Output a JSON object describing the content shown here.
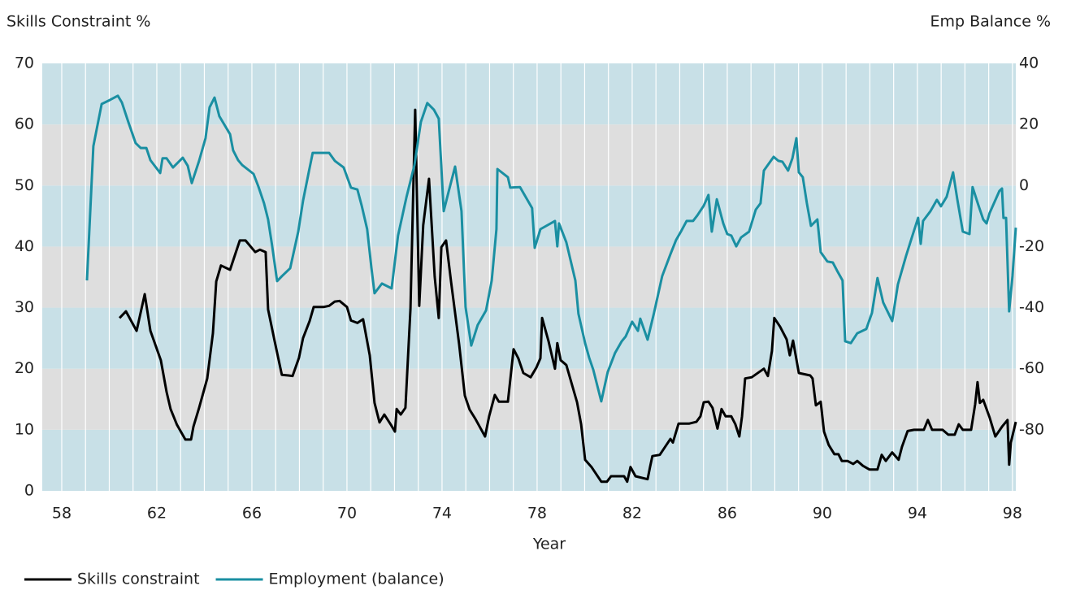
{
  "chart_data": {
    "type": "line",
    "y_label": "Skills Constraint %",
    "y2_label": "Emp Balance %",
    "x_label": "Year",
    "xlim": [
      57.18,
      98.14
    ],
    "xticks": [
      58,
      62,
      66,
      70,
      74,
      78,
      82,
      86,
      90,
      94,
      98
    ],
    "xgrid": [
      58,
      59,
      60,
      61,
      62,
      63,
      64,
      65,
      66,
      67,
      68,
      69,
      70,
      71,
      72,
      73,
      74,
      75,
      76,
      77,
      78,
      79,
      80,
      81,
      82,
      83,
      84,
      85,
      86,
      87,
      88,
      89,
      90,
      91,
      92,
      93,
      94,
      95,
      96,
      97,
      98
    ],
    "ylim": [
      0,
      70
    ],
    "yticks": [
      0,
      10,
      20,
      30,
      40,
      50,
      60,
      70
    ],
    "y2lim": [
      -100,
      40
    ],
    "y2ticks": [
      -80,
      -60,
      -40,
      -20,
      0,
      20,
      40
    ],
    "band_colors": [
      "#c8e0e7",
      "#dedede"
    ],
    "series": [
      {
        "name": "Skills constraint",
        "color": "#000000",
        "axis": "y",
        "x": [
          60.43,
          60.7,
          61.15,
          61.49,
          61.73,
          62.17,
          62.41,
          62.58,
          62.85,
          63.2,
          63.44,
          63.54,
          63.78,
          64.12,
          64.36,
          64.5,
          64.7,
          65.08,
          65.32,
          65.49,
          65.73,
          66.14,
          66.34,
          66.58,
          66.68,
          66.96,
          67.26,
          67.54,
          67.71,
          67.98,
          68.15,
          68.43,
          68.6,
          69.01,
          69.25,
          69.49,
          69.69,
          70.0,
          70.17,
          70.44,
          70.68,
          70.96,
          71.16,
          71.37,
          71.57,
          71.85,
          72.02,
          72.09,
          72.26,
          72.46,
          72.67,
          72.87,
          73.04,
          73.21,
          73.45,
          73.69,
          73.86,
          73.97,
          74.17,
          74.38,
          74.72,
          74.96,
          75.16,
          75.4,
          75.81,
          75.98,
          76.22,
          76.39,
          76.77,
          77.01,
          77.21,
          77.42,
          77.73,
          77.97,
          78.14,
          78.21,
          78.48,
          78.75,
          78.85,
          78.99,
          79.23,
          79.68,
          79.85,
          80.02,
          80.29,
          80.7,
          80.94,
          81.11,
          81.66,
          81.79,
          81.93,
          82.14,
          82.65,
          82.75,
          82.85,
          83.16,
          83.61,
          83.71,
          83.95,
          84.39,
          84.7,
          84.87,
          85.01,
          85.21,
          85.38,
          85.59,
          85.76,
          85.93,
          86.17,
          86.34,
          86.51,
          86.62,
          86.75,
          87.03,
          87.54,
          87.71,
          87.88,
          87.98,
          88.22,
          88.5,
          88.63,
          88.77,
          89.01,
          89.49,
          89.59,
          89.73,
          89.93,
          90.07,
          90.27,
          90.51,
          90.68,
          90.82,
          91.06,
          91.3,
          91.47,
          91.71,
          91.98,
          92.32,
          92.5,
          92.67,
          92.94,
          93.21,
          93.35,
          93.59,
          93.86,
          94.27,
          94.44,
          94.62,
          95.06,
          95.3,
          95.57,
          95.74,
          95.91,
          96.26,
          96.43,
          96.53,
          96.63,
          96.77,
          97.04,
          97.28,
          97.56,
          97.79,
          97.86,
          97.93,
          98.14
        ],
        "values": [
          28.3,
          29.4,
          26.2,
          32.2,
          26.2,
          21.4,
          16.2,
          13.4,
          10.8,
          8.4,
          8.4,
          10.5,
          13.6,
          18.4,
          25.8,
          34.3,
          36.9,
          36.2,
          39,
          41,
          41,
          39.1,
          39.5,
          39.1,
          29.7,
          24.5,
          19,
          18.9,
          18.8,
          21.8,
          25,
          27.8,
          30.1,
          30.1,
          30.3,
          31,
          31.1,
          30.1,
          27.9,
          27.5,
          28.1,
          22.2,
          14.4,
          11.2,
          12.5,
          10.8,
          9.7,
          13.4,
          12.5,
          13.6,
          29.8,
          62.4,
          30.3,
          43.5,
          51.1,
          35.1,
          28.3,
          39.9,
          41,
          34.2,
          24,
          15.6,
          13.3,
          11.8,
          8.9,
          12.2,
          15.7,
          14.6,
          14.6,
          23.2,
          21.7,
          19.3,
          18.6,
          20.2,
          21.7,
          28.3,
          24.5,
          20,
          24.2,
          21.4,
          20.6,
          14.5,
          10.9,
          5.1,
          3.9,
          1.5,
          1.5,
          2.4,
          2.4,
          1.5,
          3.9,
          2.4,
          1.9,
          3.9,
          5.7,
          5.9,
          8.5,
          7.9,
          11,
          11,
          11.3,
          12.2,
          14.5,
          14.6,
          13.6,
          10.2,
          13.4,
          12.2,
          12.2,
          10.9,
          8.9,
          12.2,
          18.4,
          18.6,
          20,
          18.8,
          22.9,
          28.3,
          26.9,
          24.8,
          22.2,
          24.6,
          19.3,
          18.9,
          18.4,
          14,
          14.6,
          9.7,
          7.5,
          6,
          6,
          4.9,
          4.9,
          4.4,
          4.9,
          4.1,
          3.5,
          3.5,
          5.9,
          4.9,
          6.3,
          5.1,
          7.2,
          9.8,
          10,
          10,
          11.6,
          10,
          10,
          9.2,
          9.2,
          10.9,
          10,
          10,
          14.2,
          17.8,
          14.4,
          14.9,
          12,
          8.9,
          10.5,
          11.6,
          4.3,
          7.9,
          11.3
        ]
      },
      {
        "name": "Employment (balance)",
        "color": "#1a8fa2",
        "axis": "y2",
        "x": [
          59.06,
          59.33,
          59.68,
          60.02,
          60.36,
          60.53,
          60.8,
          61.11,
          61.32,
          61.56,
          61.73,
          62.14,
          62.24,
          62.41,
          62.68,
          63.09,
          63.3,
          63.47,
          63.78,
          64.05,
          64.22,
          64.43,
          64.63,
          65.08,
          65.21,
          65.42,
          65.59,
          66.07,
          66.27,
          66.51,
          66.68,
          66.85,
          67.06,
          67.26,
          67.61,
          67.95,
          68.15,
          68.39,
          68.56,
          69.25,
          69.49,
          69.86,
          70.17,
          70.44,
          70.62,
          70.85,
          71.03,
          71.16,
          71.47,
          71.88,
          72.15,
          72.5,
          72.84,
          73.11,
          73.38,
          73.66,
          73.86,
          74.07,
          74.27,
          74.55,
          74.82,
          74.99,
          75.23,
          75.5,
          75.85,
          76.09,
          76.29,
          76.33,
          76.77,
          76.87,
          77.28,
          77.79,
          77.9,
          78.14,
          78.75,
          78.85,
          78.92,
          79.23,
          79.61,
          79.74,
          80.02,
          80.19,
          80.36,
          80.7,
          80.97,
          81.28,
          81.56,
          81.73,
          82.0,
          82.24,
          82.34,
          82.65,
          82.92,
          83.26,
          83.61,
          83.85,
          84.05,
          84.29,
          84.56,
          84.74,
          85.01,
          85.21,
          85.35,
          85.56,
          85.83,
          86.0,
          86.17,
          86.38,
          86.58,
          86.92,
          87.2,
          87.4,
          87.54,
          87.95,
          88.15,
          88.32,
          88.56,
          88.74,
          88.91,
          89.01,
          89.18,
          89.35,
          89.52,
          89.79,
          89.93,
          90.21,
          90.44,
          90.62,
          90.85,
          90.96,
          91.2,
          91.47,
          91.85,
          92.09,
          92.32,
          92.56,
          92.94,
          93.18,
          93.52,
          93.79,
          94.03,
          94.14,
          94.24,
          94.55,
          94.82,
          94.99,
          95.23,
          95.5,
          95.68,
          95.91,
          96.19,
          96.32,
          96.56,
          96.77,
          96.91,
          97.04,
          97.45,
          97.56,
          97.62,
          97.73,
          97.86,
          98.0,
          98.14
        ],
        "values": [
          -31.1,
          12.9,
          26.7,
          28,
          29.4,
          27.2,
          20.8,
          13.9,
          12.3,
          12.3,
          8.3,
          4.1,
          8.9,
          8.9,
          5.9,
          9.1,
          6.5,
          0.8,
          8.1,
          15.5,
          25.6,
          28.8,
          22.7,
          16.8,
          11.5,
          8.3,
          6.7,
          3.8,
          -0.3,
          -5.8,
          -11.1,
          -19.6,
          -31.3,
          -29.7,
          -27.1,
          -15.1,
          -5,
          4.3,
          10.7,
          10.7,
          8.1,
          5.9,
          -0.7,
          -1.3,
          -6.6,
          -14.3,
          -27.1,
          -35.3,
          -32.1,
          -33.7,
          -16.4,
          -3.9,
          6.7,
          20.8,
          27,
          24.8,
          21.9,
          -8.4,
          -2.3,
          6.2,
          -8.4,
          -39.8,
          -52.4,
          -45.7,
          -40.9,
          -31.1,
          -14.3,
          5.4,
          2.7,
          -0.7,
          -0.5,
          -7.4,
          -20.4,
          -14.3,
          -11.6,
          -19.9,
          -12.4,
          -18.6,
          -31.1,
          -42,
          -51.6,
          -56.4,
          -60.3,
          -70.7,
          -61.1,
          -54.8,
          -51,
          -49.4,
          -44.6,
          -47.6,
          -43.6,
          -50.5,
          -41.7,
          -29.7,
          -22.5,
          -17.8,
          -15.1,
          -11.6,
          -11.6,
          -9.8,
          -6.6,
          -3.1,
          -15.1,
          -4.5,
          -12.4,
          -15.9,
          -16.4,
          -19.9,
          -17,
          -15.1,
          -7.9,
          -5.8,
          4.9,
          9.4,
          8.1,
          7.8,
          4.9,
          8.9,
          15.5,
          4.3,
          2.7,
          -5.8,
          -13.2,
          -11.1,
          -21.8,
          -24.9,
          -25.2,
          -27.9,
          -31.1,
          -51,
          -51.6,
          -48.4,
          -47,
          -41.7,
          -30.3,
          -38.3,
          -44.4,
          -32.4,
          -23.1,
          -16.4,
          -10.6,
          -19.1,
          -11.6,
          -8.4,
          -4.7,
          -6.8,
          -3.7,
          4.3,
          -4.5,
          -15.1,
          -15.9,
          -0.5,
          -6.3,
          -11.1,
          -12.4,
          -9,
          -1.8,
          -1,
          -10.6,
          -10.6,
          -41.2,
          -29.7,
          -13.8
        ]
      }
    ]
  }
}
